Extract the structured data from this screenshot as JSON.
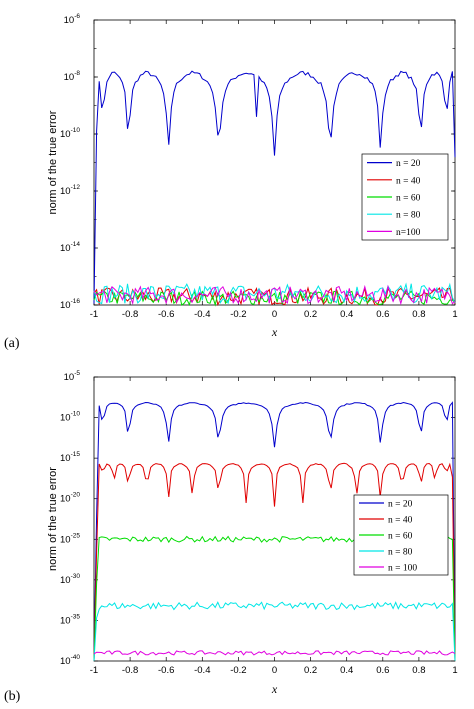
{
  "chart_data": [
    {
      "panel_label": "(a)",
      "type": "line",
      "ylabel": "norm of the true error",
      "xlabel": "x",
      "xlim": [
        -1,
        1
      ],
      "xticks": [
        "-1",
        "-0.8",
        "-0.6",
        "-0.4",
        "-0.2",
        "0",
        "0.2",
        "0.4",
        "0.6",
        "0.8",
        "1"
      ],
      "ylog": true,
      "ylim_exp": [
        -16,
        -6
      ],
      "yticks_exp": [
        -16,
        -14,
        -12,
        -10,
        -8,
        -6
      ],
      "ytick_base": "10",
      "ytick_labels": [
        "-16",
        "-14",
        "-12",
        "-10",
        "-8",
        "-6"
      ],
      "legend_position": "right",
      "series": [
        {
          "name": "n = 20",
          "color": "#0000cc",
          "level_exp": -8.1,
          "arch_amp": 0.8,
          "cusp_depth": 0.7,
          "nodes": 20,
          "noise": 0,
          "edge_drop": "left"
        },
        {
          "name": "n = 40",
          "color": "#e00000",
          "level_exp": -15.7,
          "noise": 0.3
        },
        {
          "name": "n = 60",
          "color": "#00dd00",
          "level_exp": -15.75,
          "noise": 0.25
        },
        {
          "name": "n = 80",
          "color": "#00e6e6",
          "level_exp": -15.6,
          "noise": 0.35
        },
        {
          "name": "n=100",
          "color": "#e000e0",
          "level_exp": -15.65,
          "noise": 0.3
        }
      ]
    },
    {
      "panel_label": "(b)",
      "type": "line",
      "ylabel": "norm of the true error",
      "xlabel": "x",
      "xlim": [
        -1,
        1
      ],
      "xticks": [
        "-1",
        "-0.8",
        "-0.6",
        "-0.4",
        "-0.2",
        "0",
        "0.2",
        "0.4",
        "0.6",
        "0.8",
        "1"
      ],
      "ylog": true,
      "ylim_exp": [
        -40,
        -5
      ],
      "yticks_exp": [
        -40,
        -35,
        -30,
        -25,
        -20,
        -15,
        -10,
        -5
      ],
      "ytick_base": "10",
      "ytick_labels": [
        "-40",
        "-35",
        "-30",
        "-25",
        "-20",
        "-15",
        "-10",
        "-5"
      ],
      "legend_position": "right",
      "series": [
        {
          "name": "n = 20",
          "color": "#0000cc",
          "level_exp": -8.5,
          "arch_amp": 1.0,
          "cusp_depth": 1.5,
          "nodes": 20,
          "noise": 0,
          "edge_drop": "both"
        },
        {
          "name": "n = 40",
          "color": "#e00000",
          "level_exp": -16.0,
          "arch_amp": 1.0,
          "cusp_depth": 1.4,
          "nodes": 40,
          "noise": 0,
          "edge_drop": "both"
        },
        {
          "name": "n = 60",
          "color": "#00dd00",
          "level_exp": -25.0,
          "noise": 0.35,
          "edge_drop": "both"
        },
        {
          "name": "n = 80",
          "color": "#00e6e6",
          "level_exp": -33.2,
          "noise": 0.45,
          "edge_drop": "both"
        },
        {
          "name": "n = 100",
          "color": "#e000e0",
          "level_exp": -39.0,
          "noise": 0.25
        }
      ]
    }
  ]
}
